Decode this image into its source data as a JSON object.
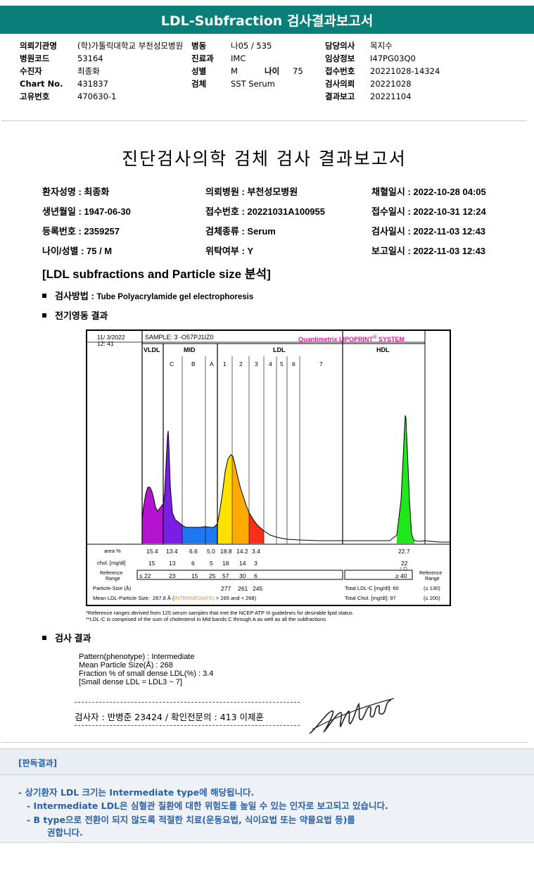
{
  "header_title": "LDL-Subfraction 검사결과보고서",
  "header_info": {
    "col1": [
      {
        "label": "의뢰기관명",
        "value": "(학)가톨릭대학교 부천성모병원"
      },
      {
        "label": "병원코드",
        "value": "53164"
      },
      {
        "label": "수진자",
        "value": "최종화"
      },
      {
        "label": "Chart No.",
        "value": "431837"
      },
      {
        "label": "고유번호",
        "value": "470630-1"
      }
    ],
    "col2": [
      {
        "label": "병동",
        "value": "나05 / 535"
      },
      {
        "label": "진료과",
        "value": "IMC"
      },
      {
        "label": "성별",
        "value": "M"
      },
      {
        "label": "검체",
        "value": "SST Serum"
      }
    ],
    "age": {
      "label": "나이",
      "value": "75"
    },
    "col3": [
      {
        "label": "담당의사",
        "value": "목지수"
      },
      {
        "label": "임상정보",
        "value": "I47PG03Q0"
      },
      {
        "label": "접수번호",
        "value": "20221028-14324"
      },
      {
        "label": "검사의뢰",
        "value": "20221028"
      },
      {
        "label": "결과보고",
        "value": "20221104"
      }
    ]
  },
  "report": {
    "title": "진단검사의학 검체 검사 결과보고서",
    "patient_fields": [
      [
        "환자성명 : 최종화",
        "의뢰병원 : 부천성모병원",
        "채혈일시 : 2022-10-28 04:05"
      ],
      [
        "생년월일 : 1947-06-30",
        "접수번호 : 20221031A100955",
        "접수일시 : 2022-10-31 12:24"
      ],
      [
        "등록번호 : 2359257",
        "검체종류 : Serum",
        "검사일시 : 2022-11-03 12:43"
      ],
      [
        "나이/성별 : 75 / M",
        "위탁여부 : Y",
        "보고일시 : 2022-11-03 12:43"
      ]
    ],
    "section_title": "[LDL subfractions and Particle size 분석]",
    "method_label": "검사방법 : ",
    "method_value": "Tube Polyacrylamide gel electrophoresis",
    "electro_label": "전기영동 결과",
    "result_label": "검사 결과",
    "results": [
      "Pattern(phenotype) : Intermediate",
      "Mean Particle Size(Å) : 268",
      "Fraction % of small dense LDL(%) : 3.4",
      "[Small dense LDL = LDL3 ~ 7]"
    ],
    "signer": "검사자 : 반병준  23424  /  확인전문의 : 413  이제훈"
  },
  "chart": {
    "date": "11/  3/2022",
    "time": "12: 41",
    "sample": "SAMPLE:   3 -O57PJ1IZ0",
    "brand": "Quantimetrix LIPOPRINT",
    "brand_reg": "®",
    "brand_tail": " SYSTEM",
    "groups": [
      "VLDL",
      "MID",
      "LDL",
      "HDL"
    ],
    "bands": [
      "C",
      "B",
      "A",
      "1",
      "2",
      "3",
      "4",
      "5",
      "6",
      "7"
    ],
    "rows": {
      "area_label": "area %",
      "area": [
        "15.4",
        "13.4",
        "6.6",
        "5.0",
        "18.8",
        "14.2",
        "3.4"
      ],
      "area_hdl": "22.7",
      "chol_label": "chol. [mg/dl]",
      "chol": [
        "15",
        "13",
        "6",
        "5",
        "18",
        "14",
        "3"
      ],
      "chol_hdl": "22",
      "chol_hdl_flag": "LO",
      "ref_label_1": "Reference",
      "ref_label_2": "Range",
      "ref_vals": [
        "≤ 22",
        "23",
        "15",
        "25",
        "57",
        "30",
        "6"
      ],
      "ref_hdl": "≥ 40",
      "ref_right_1": "Reference",
      "ref_right_2": "Range",
      "ps_label": "Particle-Size (Å)",
      "ps_vals": [
        "277",
        "261",
        "245"
      ],
      "mean_label": "Mean LDL-Particle Size:",
      "mean_value": "267.8 Å (",
      "mean_flag": "INTERMEDIATE",
      "mean_tail": "; > 265 and < 268)",
      "total_ldl": "Total LDL-C [mg/dl]:  60",
      "total_ldl_ref": "(≤ 130)",
      "total_chol": "Total Chol. [mg/dl]:   97",
      "total_chol_ref": "(≤ 200)"
    },
    "footnote_1": "*Reference ranges derived from 125 serum samples that met the NCEP ATP III guidelines for desirable lipid status",
    "footnote_2": "**LDL-C is comprised of the sum of cholesterol in Mid bands C through A as well as all the subfractions"
  },
  "interpretation": {
    "heading": "[판독결과]",
    "lines": [
      "-  상기환자 LDL 크기는 Intermediate type에 해당됩니다.",
      "-  Intermediate LDL은 심혈관 질환에 대한 위험도를 높일 수 있는 인자로 보고되고 있습니다.",
      "-  B type으로 전환이 되지 않도록 적절한 치료(운동요법, 식이요법 또는 약물요법 등)를",
      "권합니다."
    ]
  },
  "colors": {
    "title_bar": "#0a7e79",
    "vldl": "#b414d2",
    "mid_c": "#7a1ee6",
    "mid_ba": "#1e78f0",
    "ldl1": "#ffe100",
    "ldl2": "#ffaa00",
    "ldl3": "#ff2e1a",
    "hdl": "#22e61c",
    "brand": "#e0189c",
    "flag": "#e0a000",
    "interp_text": "#2b62a6"
  }
}
